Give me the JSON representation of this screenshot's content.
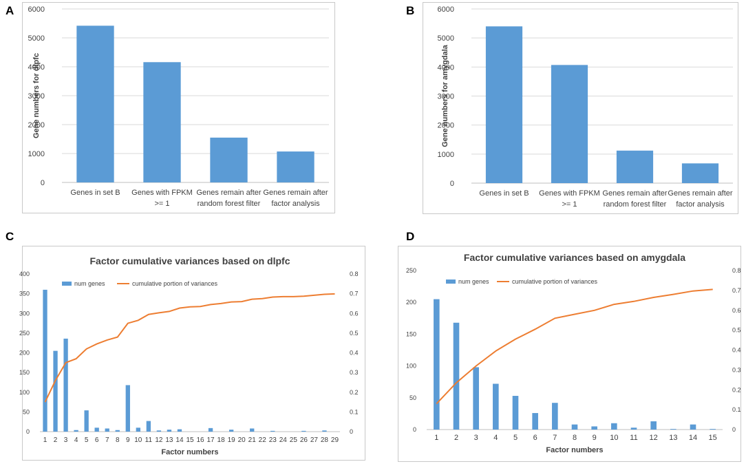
{
  "panels": {
    "a": "A",
    "b": "B",
    "c": "C",
    "d": "D"
  },
  "colors": {
    "bar": "#5B9BD5",
    "line": "#ED7D31",
    "grid": "#d9d9d9",
    "text": "#404040"
  },
  "chart_data": [
    {
      "type": "bar",
      "categories": [
        [
          "Genes in set B"
        ],
        [
          "Genes with FPKM",
          ">= 1"
        ],
        [
          "Genes remain after",
          "random forest filter"
        ],
        [
          "Genes remain after",
          "factor analysis"
        ]
      ],
      "values": [
        5420,
        4160,
        1550,
        1070
      ],
      "title": "",
      "xlabel": "",
      "ylabel": "Gene numbers for dlpfc",
      "ylim": [
        0,
        6000
      ],
      "yticks": [
        "0",
        "1000",
        "2000",
        "3000",
        "4000",
        "5000",
        "6000"
      ]
    },
    {
      "type": "bar",
      "categories": [
        [
          "Genes in set B"
        ],
        [
          "Genes with FPKM",
          ">= 1"
        ],
        [
          "Genes remain after",
          "random forest filter"
        ],
        [
          "Genes remain after",
          "factor analysis"
        ]
      ],
      "values": [
        5400,
        4070,
        1120,
        680
      ],
      "title": "",
      "xlabel": "",
      "ylabel": "Gene numbers for amygdala",
      "ylim": [
        0,
        6000
      ],
      "yticks": [
        "0",
        "1000",
        "2000",
        "3000",
        "4000",
        "5000",
        "6000"
      ]
    },
    {
      "type": "bar+line",
      "title": "Factor cumulative variances based on dlpfc",
      "xlabel": "Factor numbers",
      "categories": [
        "1",
        "2",
        "3",
        "4",
        "5",
        "6",
        "7",
        "8",
        "9",
        "10",
        "11",
        "12",
        "13",
        "14",
        "15",
        "16",
        "17",
        "18",
        "19",
        "20",
        "21",
        "22",
        "23",
        "24",
        "25",
        "26",
        "27",
        "28",
        "29"
      ],
      "series": [
        {
          "name": "num genes",
          "axis": "left",
          "values": [
            360,
            205,
            236,
            4,
            54,
            10,
            8,
            4,
            118,
            10,
            27,
            3,
            5,
            6,
            0,
            0,
            9,
            0,
            5,
            0,
            8,
            0,
            2,
            0,
            0,
            2,
            0,
            3,
            0
          ]
        },
        {
          "name": "cumulative portion of variances",
          "axis": "right",
          "values": [
            0.15,
            0.26,
            0.35,
            0.37,
            0.42,
            0.445,
            0.465,
            0.48,
            0.55,
            0.565,
            0.595,
            0.603,
            0.61,
            0.627,
            0.633,
            0.635,
            0.645,
            0.65,
            0.658,
            0.66,
            0.672,
            0.675,
            0.683,
            0.685,
            0.685,
            0.687,
            0.692,
            0.697,
            0.699
          ]
        }
      ],
      "ylim_left": [
        0,
        400
      ],
      "yticks_left": [
        "0",
        "50",
        "100",
        "150",
        "200",
        "250",
        "300",
        "350",
        "400"
      ],
      "ylim_right": [
        0,
        0.8
      ],
      "yticks_right": [
        "0",
        "0.1",
        "0.2",
        "0.3",
        "0.4",
        "0.5",
        "0.6",
        "0.7",
        "0.8"
      ]
    },
    {
      "type": "bar+line",
      "title": "Factor cumulative variances based on amygdala",
      "xlabel": "Factor numbers",
      "categories": [
        "1",
        "2",
        "3",
        "4",
        "5",
        "6",
        "7",
        "8",
        "9",
        "10",
        "11",
        "12",
        "13",
        "14",
        "15"
      ],
      "series": [
        {
          "name": "num genes",
          "axis": "left",
          "values": [
            205,
            168,
            98,
            72,
            53,
            26,
            42,
            8,
            5,
            10,
            3,
            13,
            1,
            8,
            1
          ]
        },
        {
          "name": "cumulative portion of variances",
          "axis": "right",
          "values": [
            0.13,
            0.235,
            0.32,
            0.395,
            0.455,
            0.505,
            0.56,
            0.58,
            0.6,
            0.63,
            0.645,
            0.665,
            0.68,
            0.697,
            0.705
          ]
        }
      ],
      "ylim_left": [
        0,
        250
      ],
      "yticks_left": [
        "0",
        "50",
        "100",
        "150",
        "200",
        "250"
      ],
      "ylim_right": [
        0,
        0.8
      ],
      "yticks_right": [
        "0",
        "0.1",
        "0.2",
        "0.3",
        "0.4",
        "0.5",
        "0.6",
        "0.7",
        "0.8"
      ]
    }
  ]
}
